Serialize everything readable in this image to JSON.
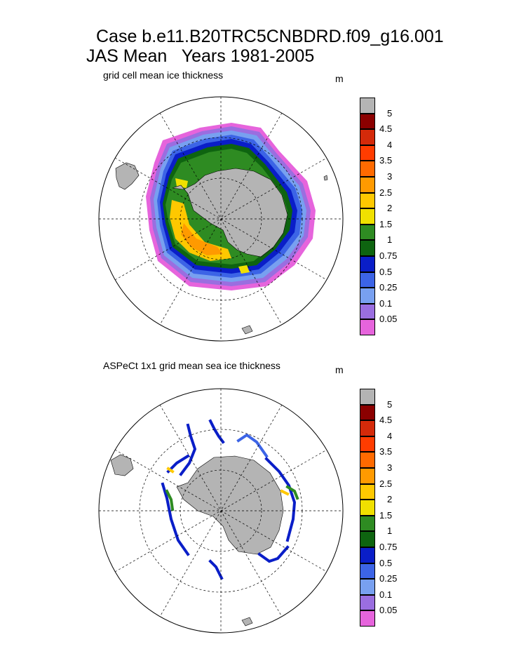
{
  "title_line1": "Case b.e11.B20TRC5CNBDRD.f09_g16.001",
  "title_line2": "JAS Mean   Years 1981-2005",
  "panels": [
    {
      "subtitle": "grid cell mean ice thickness",
      "unit": "m"
    },
    {
      "subtitle": "ASPeCt 1x1 grid mean sea ice thickness",
      "unit": "m"
    }
  ],
  "colorbar": {
    "labels": [
      "5",
      "4.5",
      "4",
      "3.5",
      "3",
      "2.5",
      "2",
      "1.5",
      "1",
      "0.75",
      "0.5",
      "0.25",
      "0.1",
      "0.05"
    ],
    "colors": [
      "#b4b4b4",
      "#8b0000",
      "#d42a0a",
      "#ff3c00",
      "#ff6a00",
      "#ff9a00",
      "#ffc800",
      "#f0e000",
      "#2e8b22",
      "#0e6410",
      "#0a1ec8",
      "#3c64e6",
      "#78a0f0",
      "#9a6ee0",
      "#e664dc"
    ]
  },
  "colors": {
    "land": "#b4b4b4",
    "line": "#000000"
  }
}
